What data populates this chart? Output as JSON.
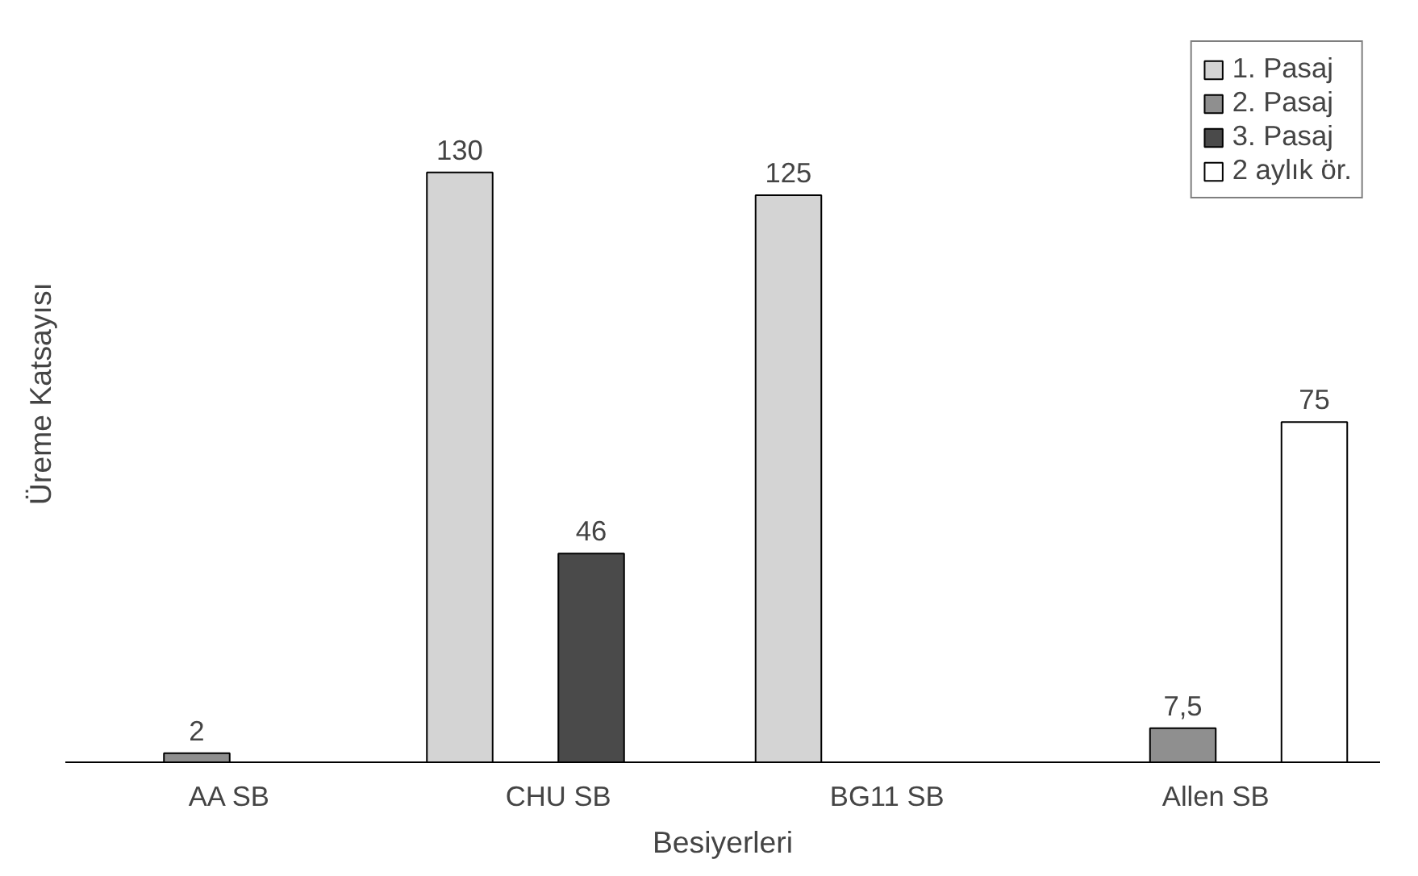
{
  "chart_data": {
    "type": "bar",
    "xlabel": "Besiyerleri",
    "ylabel": "Üreme Katsayısı",
    "categories": [
      "AA SB",
      "CHU SB",
      "BG11 SB",
      "Allen SB"
    ],
    "series": [
      {
        "name": "1. Pasaj",
        "color": "#d4d4d4",
        "values": [
          null,
          130,
          125,
          null
        ],
        "value_labels": [
          null,
          "130",
          "125",
          null
        ]
      },
      {
        "name": "2. Pasaj",
        "color": "#8f8f8f",
        "values": [
          2,
          null,
          null,
          7.5
        ],
        "value_labels": [
          "2",
          null,
          null,
          "7,5"
        ]
      },
      {
        "name": "3. Pasaj",
        "color": "#4a4a4a",
        "values": [
          null,
          46,
          null,
          null
        ],
        "value_labels": [
          null,
          "46",
          null,
          null
        ]
      },
      {
        "name": "2 aylık ör.",
        "color": "#ffffff",
        "values": [
          null,
          null,
          null,
          75
        ],
        "value_labels": [
          null,
          null,
          null,
          "75"
        ]
      }
    ],
    "legend": "top right",
    "grid": false
  }
}
